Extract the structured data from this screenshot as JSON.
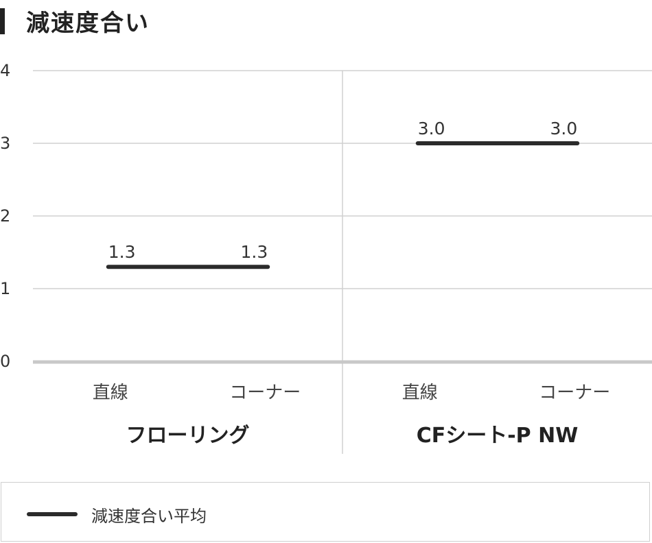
{
  "title": "減速度合い",
  "chart_data": {
    "type": "line",
    "groups": [
      {
        "name": "フローリング",
        "categories": [
          "直線",
          "コーナー"
        ],
        "values": [
          1.3,
          1.3
        ]
      },
      {
        "name": "CFシート-P NW",
        "categories": [
          "直線",
          "コーナー"
        ],
        "values": [
          3.0,
          3.0
        ]
      }
    ],
    "series": [
      {
        "name": "減速度合い平均"
      }
    ],
    "ylim": [
      0,
      4
    ],
    "yticks": [
      "0",
      "1",
      "2",
      "3",
      "4"
    ],
    "data_labels": [
      [
        "1.3",
        "1.3"
      ],
      [
        "3.0",
        "3.0"
      ]
    ],
    "grid": true,
    "legend_position": "bottom"
  },
  "legend": {
    "label": "減速度合い平均"
  },
  "colors": {
    "line": "#2b2b2b",
    "grid": "#d0d0d0",
    "axis": "#c8c8c8"
  }
}
